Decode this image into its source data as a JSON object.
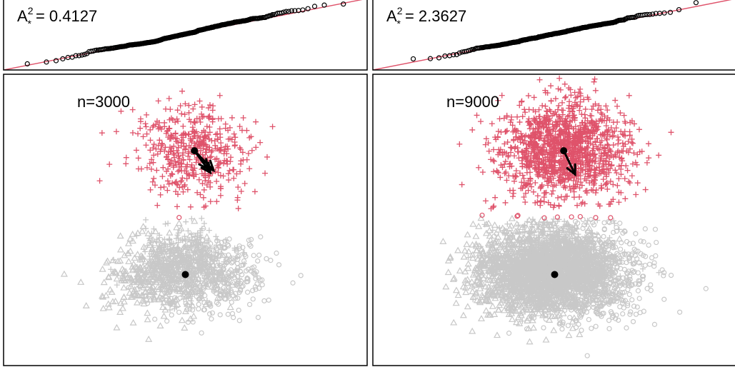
{
  "colors": {
    "highlight": "#DF536B",
    "background_points": "#C8C8C8",
    "reference_line": "#DF536B",
    "qq_points": "#000000",
    "frame": "#000000"
  },
  "chart_data": [
    {
      "type": "scatter",
      "role": "qq-plot",
      "panel": "top-left",
      "label_prefix": "A",
      "label_superscript": "2",
      "label_subscript": "*",
      "label_value": "= 0.4127",
      "statistic": 0.4127,
      "theoretical_range": [
        -3.4,
        3.4
      ],
      "sample_range": [
        -3.4,
        3.4
      ],
      "reference_line": {
        "intercept": 0,
        "slope": 1
      },
      "n": 3000,
      "grid": false,
      "legend": "none"
    },
    {
      "type": "scatter",
      "role": "qq-plot",
      "panel": "top-right",
      "label_prefix": "A",
      "label_superscript": "2",
      "label_subscript": "*",
      "label_value": "= 2.3627",
      "statistic": 2.3627,
      "theoretical_range": [
        -3.8,
        3.8
      ],
      "sample_range": [
        -3.8,
        3.8
      ],
      "reference_line": {
        "intercept": 0,
        "slope": 1
      },
      "n": 9000,
      "grid": false,
      "legend": "none"
    },
    {
      "type": "scatter",
      "role": "scatter-with-arrows",
      "panel": "bottom-left",
      "label": "n=3000",
      "n": 3000,
      "xlim": [
        -4,
        4
      ],
      "ylim": [
        -4,
        4
      ],
      "groups": [
        {
          "marker": "plus",
          "color": "#DF536B",
          "center": [
            0.2,
            1.9
          ],
          "sd": [
            0.65,
            0.65
          ]
        },
        {
          "marker": "circle",
          "color": "#C8C8C8",
          "center": [
            0.6,
            -1.5
          ],
          "sd": [
            0.6,
            0.55
          ]
        },
        {
          "marker": "triangle",
          "color": "#C8C8C8",
          "center": [
            -0.6,
            -1.5
          ],
          "sd": [
            0.6,
            0.55
          ]
        },
        {
          "marker": "plus",
          "color": "#C8C8C8",
          "center": [
            0.0,
            -1.2
          ],
          "sd": [
            0.5,
            0.45
          ]
        }
      ],
      "centers": [
        [
          0.2,
          1.9
        ],
        [
          0.0,
          -1.5
        ]
      ],
      "arrows": [
        {
          "from": [
            0.2,
            1.9
          ],
          "to": [
            0.55,
            1.3
          ]
        },
        {
          "from": [
            0.2,
            1.9
          ],
          "to": [
            0.62,
            1.36
          ]
        },
        {
          "from": [
            0.2,
            1.9
          ],
          "to": [
            0.5,
            1.4
          ]
        }
      ],
      "grid": false,
      "legend": "none"
    },
    {
      "type": "scatter",
      "role": "scatter-with-arrows",
      "panel": "bottom-right",
      "label": "n=9000",
      "n": 9000,
      "xlim": [
        -4,
        4
      ],
      "ylim": [
        -4,
        4
      ],
      "groups": [
        {
          "marker": "plus",
          "color": "#DF536B",
          "center": [
            0.2,
            1.9
          ],
          "sd": [
            0.7,
            0.7
          ]
        },
        {
          "marker": "circle",
          "color": "#C8C8C8",
          "center": [
            0.6,
            -1.5
          ],
          "sd": [
            0.65,
            0.6
          ]
        },
        {
          "marker": "triangle",
          "color": "#C8C8C8",
          "center": [
            -0.6,
            -1.5
          ],
          "sd": [
            0.65,
            0.6
          ]
        },
        {
          "marker": "plus",
          "color": "#C8C8C8",
          "center": [
            0.0,
            -1.2
          ],
          "sd": [
            0.55,
            0.5
          ]
        }
      ],
      "centers": [
        [
          0.2,
          1.9
        ],
        [
          0.0,
          -1.5
        ]
      ],
      "arrows": [
        {
          "from": [
            0.2,
            1.9
          ],
          "to": [
            0.45,
            1.25
          ]
        }
      ],
      "grid": false,
      "legend": "none"
    }
  ]
}
